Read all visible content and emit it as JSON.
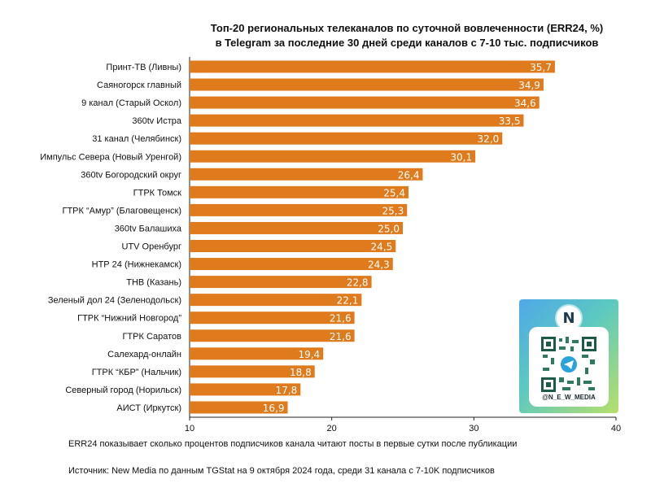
{
  "chart_data": {
    "type": "bar",
    "orientation": "horizontal",
    "title_line1": "Топ-20 региональных телеканалов по суточной вовлеченности (ERR24, %)",
    "title_line2": "в Telegram за последние 30 дней среди каналов с 7-10 тыс. подписчиков",
    "categories": [
      "Принт-ТВ (Ливны)",
      "Саяногорск главный",
      "9 канал (Старый Оскол)",
      "360tv Истра",
      "31 канал (Челябинск)",
      "Импульс Севера (Новый Уренгой)",
      "360tv Богородский округ",
      "ГТРК Томск",
      "ГТРК “Амур” (Благовещенск)",
      "360tv Балашиха",
      "UTV Оренбург",
      "НТР 24 (Нижнекамск)",
      "ТНВ (Казань)",
      "Зеленый дол 24 (Зеленодольск)",
      "ГТРК “Нижний Новгород”",
      "ГТРК Саратов",
      "Салехард-онлайн",
      "ГТРК “КБР” (Нальчик)",
      "Северный город (Норильск)",
      "АИСТ (Иркутск)"
    ],
    "values": [
      35.7,
      34.9,
      34.6,
      33.5,
      32.0,
      30.1,
      26.4,
      25.4,
      25.3,
      25.0,
      24.5,
      24.3,
      22.8,
      22.1,
      21.6,
      21.6,
      19.4,
      18.8,
      17.8,
      16.9
    ],
    "value_labels": [
      "35,7",
      "34,9",
      "34,6",
      "33,5",
      "32,0",
      "30,1",
      "26,4",
      "25,4",
      "25,3",
      "25,0",
      "24,5",
      "24,3",
      "22,8",
      "22,1",
      "21,6",
      "21,6",
      "19,4",
      "18,8",
      "17,8",
      "16,9"
    ],
    "xlim": [
      10,
      40
    ],
    "xticks": [
      10,
      20,
      30,
      40
    ],
    "xtick_labels": [
      "10",
      "20",
      "30",
      "40"
    ],
    "grid": false,
    "bar_color": "#e07b1d",
    "label_color": "#ffffff"
  },
  "notes": {
    "definition": "ERR24 показывает сколько процентов подписчиков канала читают посты в первые сутки после публикации",
    "source": "Источник: New Media по данным TGStat на 9 октября 2024 года, среди 31 канала с 7-10K подписчиков"
  },
  "qr_card": {
    "logo_letter": "N",
    "handle": "@N_E_W_MEDIA"
  }
}
